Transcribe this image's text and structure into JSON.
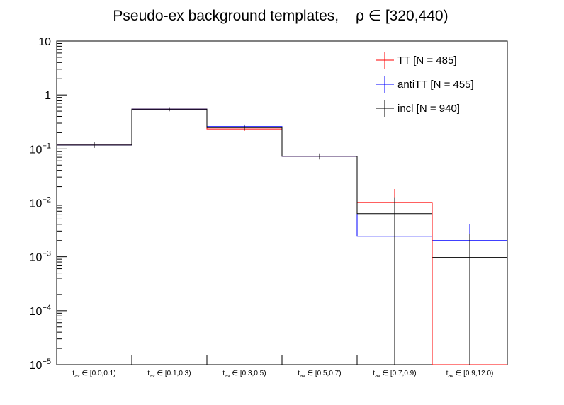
{
  "chart_data": {
    "type": "histogram",
    "title": "Pseudo-ex background templates,",
    "title_symbol": "ρ ∈ [320,440)",
    "categories": [
      {
        "sym": "t",
        "sub": "av",
        "rest": " ∈ [0.0,0.1)"
      },
      {
        "sym": "t",
        "sub": "av",
        "rest": " ∈ [0.1,0.3)"
      },
      {
        "sym": "t",
        "sub": "av",
        "rest": " ∈ [0.3,0.5)"
      },
      {
        "sym": "t",
        "sub": "av",
        "rest": " ∈ [0.5,0.7)"
      },
      {
        "sym": "t",
        "sub": "av",
        "rest": " ∈ [0.7,0.9)"
      },
      {
        "sym": "t",
        "sub": "av",
        "rest": " ∈ [0.9,12.0)"
      }
    ],
    "y_scale": "log",
    "ylim": [
      1e-05,
      10
    ],
    "y_ticks": [
      {
        "value": 1e-05,
        "base": "10",
        "exp": "−5"
      },
      {
        "value": 0.0001,
        "base": "10",
        "exp": "−4"
      },
      {
        "value": 0.001,
        "base": "10",
        "exp": "−3"
      },
      {
        "value": 0.01,
        "base": "10",
        "exp": "−2"
      },
      {
        "value": 0.1,
        "base": "10",
        "exp": "−1"
      },
      {
        "value": 1,
        "base": "1",
        "exp": ""
      },
      {
        "value": 10,
        "base": "10",
        "exp": ""
      }
    ],
    "legend_position": "top-right",
    "series": [
      {
        "name": "TT [N = 485]",
        "color": "#ff0000",
        "values": [
          0.118,
          0.545,
          0.235,
          0.073,
          0.0102,
          0.0
        ],
        "err_low": [
          0.105,
          0.5,
          0.215,
          0.064,
          0.0,
          0.0
        ],
        "err_high": [
          0.132,
          0.59,
          0.256,
          0.082,
          0.018,
          0.0
        ]
      },
      {
        "name": "antiTT [N = 455]",
        "color": "#0000ff",
        "values": [
          0.118,
          0.545,
          0.26,
          0.073,
          0.0024,
          0.002
        ],
        "err_low": [
          0.105,
          0.5,
          0.238,
          0.064,
          0.0,
          0.0
        ],
        "err_high": [
          0.132,
          0.59,
          0.283,
          0.082,
          0.0059,
          0.0041
        ]
      },
      {
        "name": "incl [N = 940]",
        "color": "#000000",
        "values": [
          0.118,
          0.545,
          0.248,
          0.073,
          0.0063,
          0.00097
        ],
        "err_low": [
          0.105,
          0.5,
          0.226,
          0.064,
          0.0,
          0.0
        ],
        "err_high": [
          0.132,
          0.59,
          0.27,
          0.082,
          0.0127,
          0.0026
        ]
      }
    ]
  }
}
